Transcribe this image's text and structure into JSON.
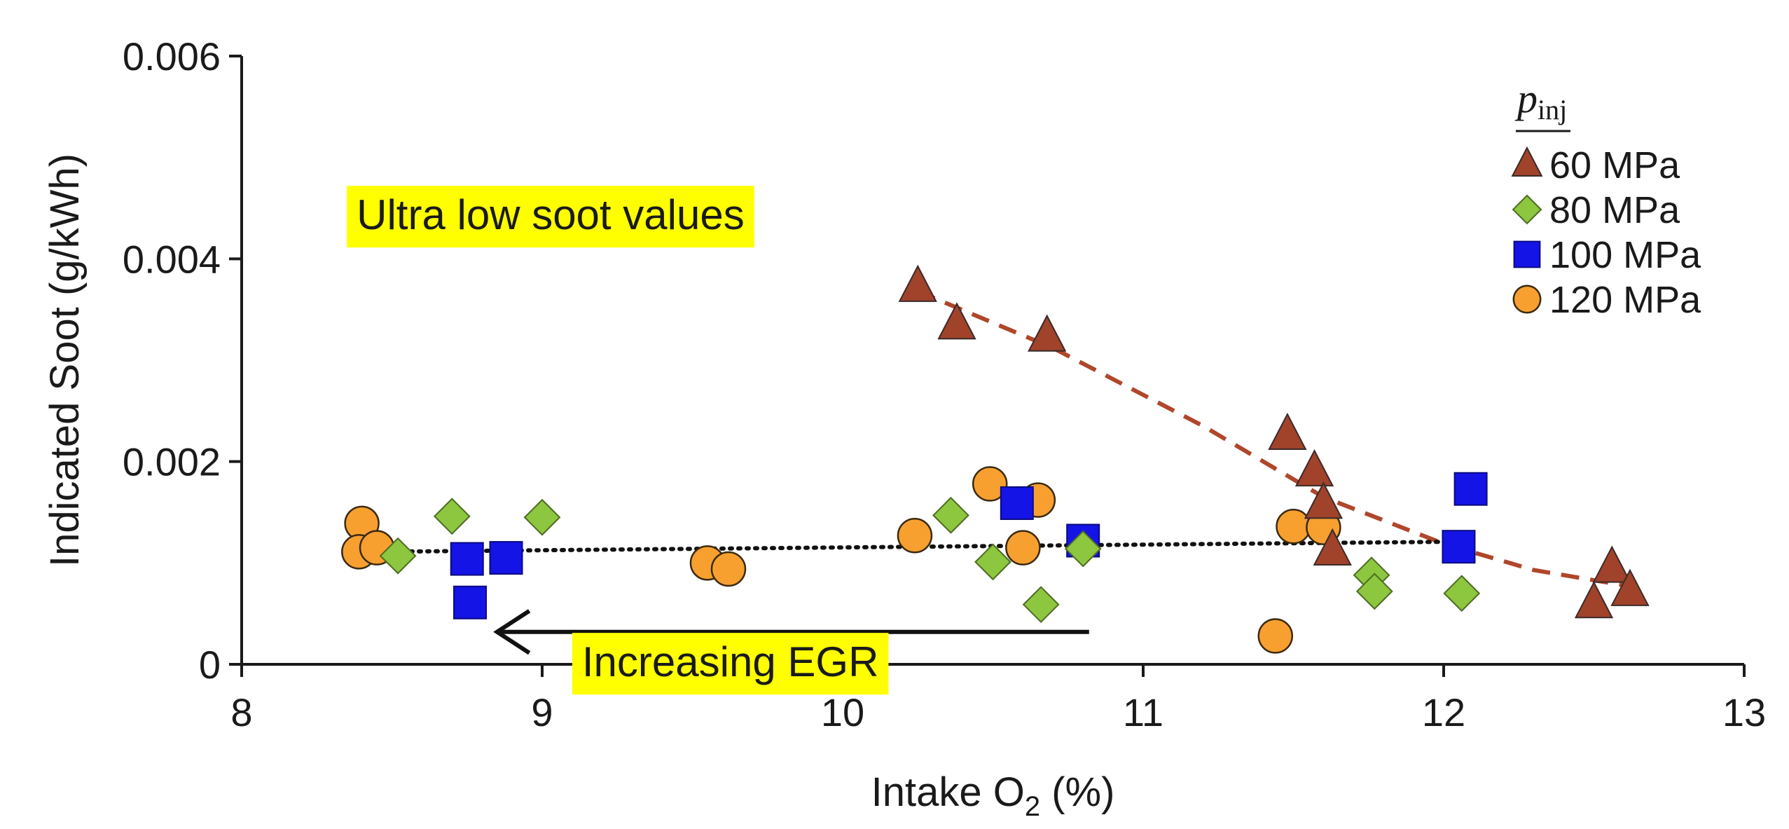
{
  "chart_data": {
    "type": "scatter",
    "title": "",
    "xlabel": "Intake O",
    "xlabel_sub": "2",
    "xlabel_unit": "(%)",
    "ylabel": "Indicated Soot (g/kWh)",
    "xlim": [
      8,
      13
    ],
    "ylim": [
      0,
      0.006
    ],
    "x_ticks": [
      8,
      9,
      10,
      11,
      12,
      13
    ],
    "x_tick_labels": [
      "8",
      "9",
      "10",
      "11",
      "12",
      "13"
    ],
    "y_ticks": [
      0,
      0.002,
      0.004,
      0.006
    ],
    "y_tick_labels": [
      "0",
      "0.002",
      "0.004",
      "0.006"
    ],
    "legend": {
      "title": "p",
      "title_sub": "inj",
      "position": "top-right"
    },
    "series": [
      {
        "name": "60 MPa",
        "marker": "triangle",
        "color": "#A0432A",
        "points": [
          {
            "x": 10.25,
            "y": 0.00372
          },
          {
            "x": 10.38,
            "y": 0.00335
          },
          {
            "x": 10.68,
            "y": 0.00323
          },
          {
            "x": 11.48,
            "y": 0.00226
          },
          {
            "x": 11.57,
            "y": 0.0019
          },
          {
            "x": 11.6,
            "y": 0.00158
          },
          {
            "x": 11.63,
            "y": 0.00112
          },
          {
            "x": 12.5,
            "y": 0.0006
          },
          {
            "x": 12.56,
            "y": 0.00095
          },
          {
            "x": 12.62,
            "y": 0.00072
          }
        ]
      },
      {
        "name": "80 MPa",
        "marker": "diamond",
        "color": "#8DC63F",
        "points": [
          {
            "x": 8.52,
            "y": 0.00107
          },
          {
            "x": 8.7,
            "y": 0.00146
          },
          {
            "x": 9.0,
            "y": 0.00145
          },
          {
            "x": 10.36,
            "y": 0.00147
          },
          {
            "x": 10.5,
            "y": 0.00101
          },
          {
            "x": 10.66,
            "y": 0.00059
          },
          {
            "x": 10.8,
            "y": 0.00114
          },
          {
            "x": 11.76,
            "y": 0.00088
          },
          {
            "x": 11.77,
            "y": 0.00072
          },
          {
            "x": 12.06,
            "y": 0.0007
          }
        ]
      },
      {
        "name": "100 MPa",
        "marker": "square",
        "color": "#1414E6",
        "points": [
          {
            "x": 8.75,
            "y": 0.00104
          },
          {
            "x": 8.76,
            "y": 0.00061
          },
          {
            "x": 8.88,
            "y": 0.00105
          },
          {
            "x": 10.58,
            "y": 0.00159
          },
          {
            "x": 10.8,
            "y": 0.00122
          },
          {
            "x": 12.05,
            "y": 0.00116
          },
          {
            "x": 12.09,
            "y": 0.00173
          }
        ]
      },
      {
        "name": "120 MPa",
        "marker": "circle",
        "color": "#F7A030",
        "points": [
          {
            "x": 8.4,
            "y": 0.00139
          },
          {
            "x": 8.39,
            "y": 0.00111
          },
          {
            "x": 8.45,
            "y": 0.00115
          },
          {
            "x": 9.55,
            "y": 0.001
          },
          {
            "x": 9.62,
            "y": 0.00094
          },
          {
            "x": 10.24,
            "y": 0.00127
          },
          {
            "x": 10.49,
            "y": 0.00178
          },
          {
            "x": 10.6,
            "y": 0.00115
          },
          {
            "x": 10.65,
            "y": 0.00162
          },
          {
            "x": 11.44,
            "y": 0.00028
          },
          {
            "x": 11.5,
            "y": 0.00136
          },
          {
            "x": 11.6,
            "y": 0.00135
          }
        ]
      }
    ],
    "trend_lines": [
      {
        "name": "60 MPa trend",
        "style": "dashed",
        "color": "#B0462A",
        "points": [
          {
            "x": 10.25,
            "y": 0.00368
          },
          {
            "x": 10.7,
            "y": 0.00312
          },
          {
            "x": 11.2,
            "y": 0.00235
          },
          {
            "x": 11.6,
            "y": 0.00165
          },
          {
            "x": 12.0,
            "y": 0.00119
          },
          {
            "x": 12.3,
            "y": 0.00093
          },
          {
            "x": 12.6,
            "y": 0.00078
          }
        ]
      },
      {
        "name": "overall trend",
        "style": "dotted",
        "color": "#111111",
        "points": [
          {
            "x": 8.45,
            "y": 0.00111
          },
          {
            "x": 12.05,
            "y": 0.00121
          }
        ]
      }
    ],
    "annotations": [
      {
        "id": "ultra-low",
        "text": "Ultra low soot values",
        "highlight": "#FFFF00",
        "x": 8.35,
        "y": 0.00472
      },
      {
        "id": "egr",
        "text": "Increasing EGR",
        "highlight": "#FFFF00",
        "x": 9.1,
        "y": 0.00031
      }
    ],
    "arrow": {
      "from": {
        "x": 10.82,
        "y": 0.00032
      },
      "to": {
        "x": 8.85,
        "y": 0.00032
      }
    }
  }
}
